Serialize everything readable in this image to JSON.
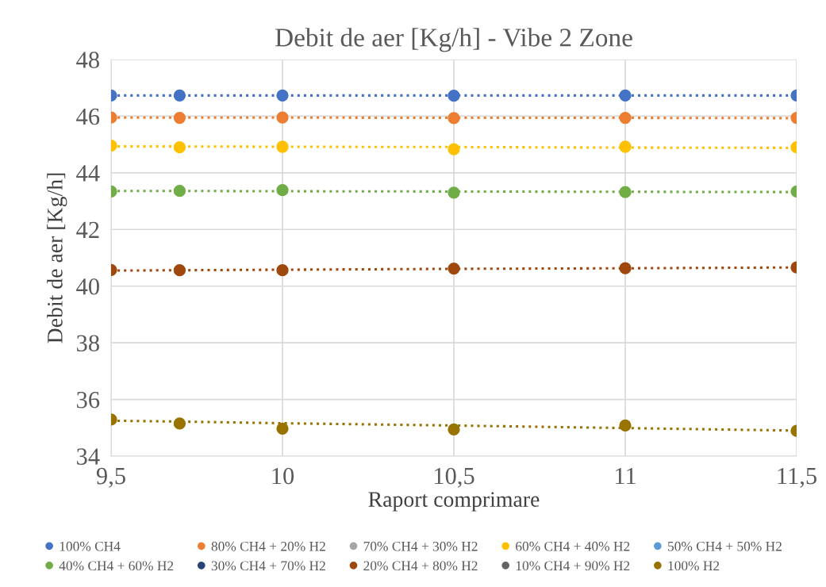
{
  "chart_data": {
    "type": "scatter",
    "title": "Debit de aer [Kg/h] - Vibe 2 Zone",
    "xlabel": "Raport comprimare",
    "ylabel": "Debit de aer [Kg/h]",
    "x": [
      9.5,
      9.7,
      10,
      10.5,
      11,
      11.5
    ],
    "xlim": [
      9.5,
      11.5
    ],
    "xticks": [
      {
        "value": 9.5,
        "label": "9,5"
      },
      10,
      {
        "value": 10.5,
        "label": "10,5"
      },
      11,
      {
        "value": 11.5,
        "label": "11,5"
      }
    ],
    "ylim": [
      34,
      48
    ],
    "yticks": [
      34,
      36,
      38,
      40,
      42,
      44,
      46,
      48
    ],
    "grid": true,
    "legend": "bottom",
    "series": [
      {
        "name": "100% CH4",
        "marker": "circle",
        "color": "#4472c4",
        "values": [
          46.73,
          46.73,
          46.73,
          46.72,
          46.73,
          46.73
        ]
      },
      {
        "name": "80% CH4 + 20% H2",
        "marker": "circle",
        "color": "#ed7d31",
        "values": [
          45.95,
          45.94,
          45.95,
          45.93,
          45.94,
          45.94
        ]
      },
      {
        "name": "70% CH4 + 30% H2",
        "marker": "circle",
        "color": "#a5a5a5",
        "values": [
          null,
          null,
          null,
          null,
          null,
          null
        ]
      },
      {
        "name": "60% CH4 + 40% H2",
        "marker": "circle",
        "color": "#ffc000",
        "values": [
          44.96,
          44.9,
          44.92,
          44.83,
          44.92,
          44.9
        ]
      },
      {
        "name": "50% CH4 + 50% H2",
        "marker": "circle",
        "color": "#5b9bd5",
        "values": [
          null,
          null,
          null,
          null,
          null,
          null
        ]
      },
      {
        "name": "40% CH4 + 60% H2",
        "marker": "circle",
        "color": "#70ad47",
        "values": [
          43.34,
          43.36,
          43.39,
          43.3,
          43.32,
          43.34
        ]
      },
      {
        "name": "30% CH4 + 70% H2",
        "marker": "circle",
        "color": "#264478",
        "values": [
          null,
          null,
          null,
          null,
          null,
          null
        ]
      },
      {
        "name": "20% CH4 + 80% H2",
        "marker": "circle",
        "color": "#9e480e",
        "values": [
          40.57,
          40.56,
          40.56,
          40.62,
          40.63,
          40.66
        ]
      },
      {
        "name": "10% CH4 + 90% H2",
        "marker": "circle",
        "color": "#636363",
        "values": [
          null,
          null,
          null,
          null,
          null,
          null
        ]
      },
      {
        "name": "100% H2",
        "marker": "circle",
        "color": "#997300",
        "values": [
          35.29,
          35.15,
          34.97,
          34.94,
          35.08,
          34.89
        ]
      },
      {
        "type": "line",
        "marker": "none",
        "line_style": "dotted",
        "color": "#4472c4",
        "values": [
          46.73,
          46.73,
          46.73,
          46.73,
          46.73,
          46.73
        ]
      },
      {
        "type": "line",
        "marker": "none",
        "line_style": "dotted",
        "color": "#ed7d31",
        "values": [
          45.95,
          45.95,
          45.95,
          45.94,
          45.94,
          45.93
        ]
      },
      {
        "type": "line",
        "marker": "none",
        "line_style": "dotted",
        "color": "#ffc000",
        "values": [
          44.93,
          44.93,
          44.92,
          44.91,
          44.89,
          44.88
        ]
      },
      {
        "type": "line",
        "marker": "none",
        "line_style": "dotted",
        "color": "#70ad47",
        "values": [
          43.36,
          43.36,
          43.35,
          43.34,
          43.33,
          43.32
        ]
      },
      {
        "type": "line",
        "marker": "none",
        "line_style": "dotted",
        "color": "#9e480e",
        "values": [
          40.55,
          40.56,
          40.58,
          40.61,
          40.63,
          40.66
        ]
      },
      {
        "type": "line",
        "marker": "none",
        "line_style": "dotted",
        "color": "#997300",
        "values": [
          35.25,
          35.22,
          35.16,
          35.08,
          34.99,
          34.9
        ]
      }
    ]
  }
}
